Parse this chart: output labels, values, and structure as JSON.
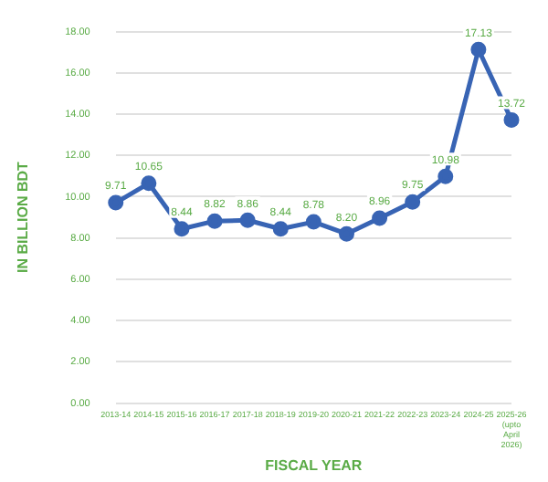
{
  "chart_data": {
    "type": "line",
    "xlabel": "FISCAL YEAR",
    "ylabel": "IN BILLION BDT",
    "categories": [
      "2013-14",
      "2014-15",
      "2015-16",
      "2016-17",
      "2017-18",
      "2018-19",
      "2019-20",
      "2020-21",
      "2021-22",
      "2022-23",
      "2023-24",
      "2024-25",
      "2025-26 (upto April 2026)"
    ],
    "series": [
      {
        "color": "#3864b4",
        "values": [
          9.71,
          10.65,
          8.44,
          8.82,
          8.86,
          8.44,
          8.78,
          8.2,
          8.96,
          9.75,
          10.98,
          17.13,
          13.72
        ],
        "value_labels": [
          "9.71",
          "10.65",
          "8.44",
          "8.82",
          "8.86",
          "8.44",
          "8.78",
          "8.20",
          "8.96",
          "9.75",
          "10.98",
          "17.13",
          "13.72"
        ]
      }
    ],
    "ylim": [
      0,
      18
    ],
    "yticks": [
      {
        "value": 0,
        "label": "0.00"
      },
      {
        "value": 2,
        "label": "2.00"
      },
      {
        "value": 4,
        "label": "4.00"
      },
      {
        "value": 6,
        "label": "6.00"
      },
      {
        "value": 8,
        "label": "8.00"
      },
      {
        "value": 10,
        "label": "10.00"
      },
      {
        "value": 12,
        "label": "12.00"
      },
      {
        "value": 14,
        "label": "14.00"
      },
      {
        "value": 16,
        "label": "16.00"
      },
      {
        "value": 18,
        "label": "18.00"
      }
    ],
    "grid": "y",
    "marker": "circle",
    "line_style": "solid",
    "legend": false
  }
}
